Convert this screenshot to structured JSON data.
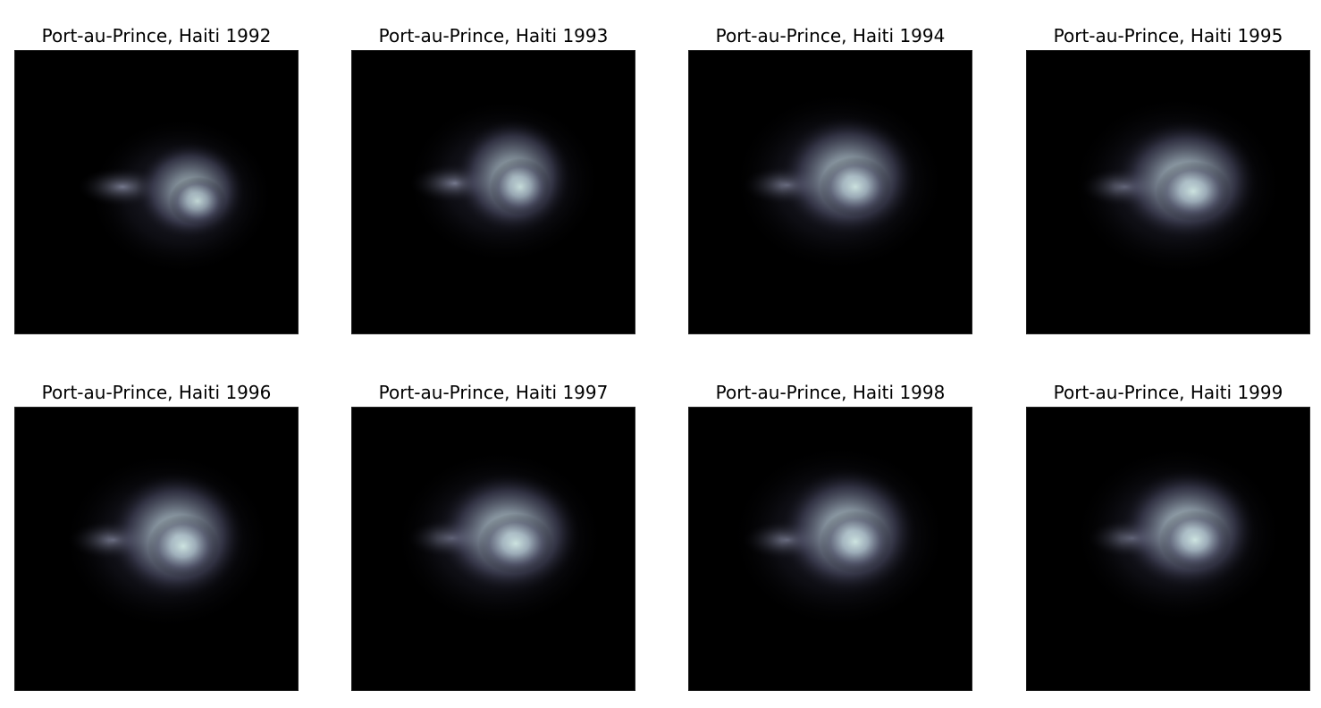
{
  "figure": {
    "background": "#ffffff",
    "colormap": "bone",
    "panels": [
      {
        "title": "Port-au-Prince, Haiti 1992",
        "brightness": 0.82
      },
      {
        "title": "Port-au-Prince, Haiti 1993",
        "brightness": 0.86
      },
      {
        "title": "Port-au-Prince, Haiti 1994",
        "brightness": 0.92
      },
      {
        "title": "Port-au-Prince, Haiti 1995",
        "brightness": 0.94
      },
      {
        "title": "Port-au-Prince, Haiti 1996",
        "brightness": 0.95
      },
      {
        "title": "Port-au-Prince, Haiti 1997",
        "brightness": 0.95
      },
      {
        "title": "Port-au-Prince, Haiti 1998",
        "brightness": 0.96
      },
      {
        "title": "Port-au-Prince, Haiti 1999",
        "brightness": 0.97
      }
    ]
  }
}
